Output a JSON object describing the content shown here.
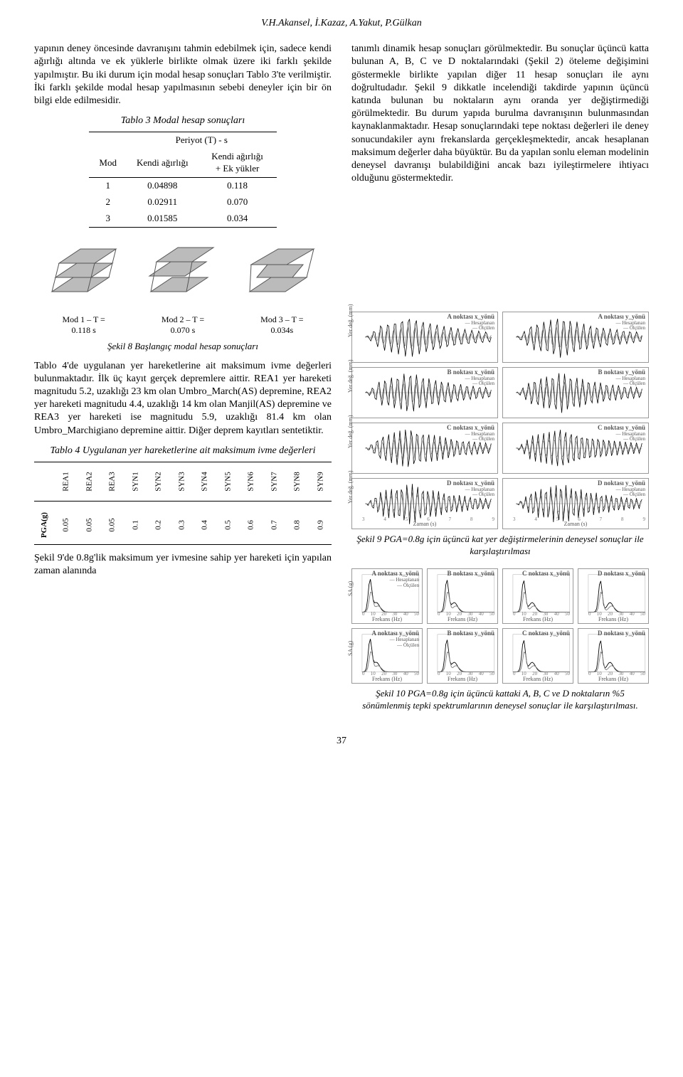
{
  "header": {
    "authors": "V.H.Akansel, İ.Kazaz, A.Yakut, P.Gülkan"
  },
  "left_para1": "yapının deney öncesinde davranışını tahmin edebilmek için, sadece kendi ağırlığı altında ve ek yüklerle birlikte olmak üzere iki farklı şekilde yapılmıştır. Bu iki durum için modal hesap sonuçları Tablo 3'te verilmiştir. İki farklı şekilde modal hesap yapılmasının sebebi deneyler için bir ön bilgi elde edilmesidir.",
  "tbl3": {
    "caption": "Tablo 3 Modal hesap sonuçları",
    "group_header": "Periyot (T) - s",
    "cols": [
      "Mod",
      "Kendi ağırlığı",
      "Kendi ağırlığı + Ek yükler"
    ],
    "rows": [
      [
        "1",
        "0.04898",
        "0.118"
      ],
      [
        "2",
        "0.02911",
        "0.070"
      ],
      [
        "3",
        "0.01585",
        "0.034"
      ]
    ]
  },
  "right_para": "tanımlı dinamik hesap sonuçları görülmektedir. Bu sonuçlar üçüncü katta bulunan A, B, C ve D noktalarındaki (Şekil 2) öteleme değişimini göstermekle birlikte yapılan diğer 11 hesap sonuçları ile aynı doğrultudadır. Şekil 9 dikkatle incelendiği takdirde yapının üçüncü katında bulunan bu noktaların aynı oranda yer değiştirmediği görülmektedir. Bu durum yapıda burulma davranışının bulunmasından kaynaklanmaktadır. Hesap sonuçlarındaki tepe noktası değerleri ile deney sonucundakiler aynı frekanslarda gerçekleşmektedir, ancak hesaplanan maksimum değerler daha büyüktür. Bu da yapılan sonlu eleman modelinin deneysel davranışı bulabildiğini ancak bazı iyileştirmelere ihtiyacı olduğunu göstermektedir.",
  "mode_labels": [
    {
      "top": "Mod 1 – T =",
      "bot": "0.118 s"
    },
    {
      "top": "Mod 2 – T =",
      "bot": "0.070 s"
    },
    {
      "top": "Mod 3 – T =",
      "bot": "0.034s"
    }
  ],
  "fig8_caption": "Şekil 8 Başlangıç modal hesap sonuçları",
  "left_para2": "Tablo 4'de uygulanan yer hareketlerine ait maksimum ivme değerleri bulunmaktadır. İlk üç kayıt gerçek depremlere aittir. REA1 yer hareketi magnitudu 5.2, uzaklığı 23 km olan Umbro_March(AS) depremine, REA2 yer hareketi magnitudu 4.4, uzaklığı 14 km olan Manjil(AS) depremine ve REA3 yer hareketi ise magnitudu 5.9, uzaklığı 81.4 km olan Umbro_Marchigiano depremine aittir. Diğer deprem kayıtları sentetiktir.",
  "tbl4": {
    "caption": "Tablo 4 Uygulanan yer hareketlerine ait maksimum ivme değerleri",
    "lead": "PGA(g)",
    "headers": [
      "REA1",
      "REA2",
      "REA3",
      "SYN1",
      "SYN2",
      "SYN3",
      "SYN4",
      "SYN5",
      "SYN6",
      "SYN7",
      "SYN8",
      "SYN9"
    ],
    "values": [
      "0.05",
      "0.05",
      "0.05",
      "0.1",
      "0.2",
      "0.3",
      "0.4",
      "0.5",
      "0.6",
      "0.7",
      "0.8",
      "0.9"
    ]
  },
  "left_para3": "Şekil 9'de 0.8g'lik maksimum yer ivmesine sahip yer hareketi için yapılan zaman alanında",
  "fig9": {
    "caption": "Şekil 9 PGA=0.8g için üçüncü kat yer değiştirmelerinin deneysel sonuçlar ile karşılaştırılması",
    "ylabel": "Yer değ. (mm)",
    "xlabel": "Zaman (s)",
    "xticks": [
      "3",
      "4",
      "5",
      "6",
      "7",
      "8",
      "9"
    ],
    "ylim": [
      -20,
      20
    ],
    "legend": [
      "Hesaplanan",
      "Ölçülen"
    ],
    "panels": [
      {
        "title": "A noktası x_yönü"
      },
      {
        "title": "A noktası y_yönü"
      },
      {
        "title": "B noktası x_yönü"
      },
      {
        "title": "B noktası y_yönü"
      },
      {
        "title": "C noktası x_yönü"
      },
      {
        "title": "C noktası y_yönü"
      },
      {
        "title": "D noktası x_yönü"
      },
      {
        "title": "D noktası y_yönü"
      }
    ],
    "colors": {
      "hesaplanan": "#000000",
      "olculen": "#7a7a7a"
    }
  },
  "fig10": {
    "caption": "Şekil 10 PGA=0.8g için üçüncü kattaki A, B, C ve D noktaların %5 sönümlenmiş tepki spektrumlarının deneysel sonuçlar ile karşılaştırılması.",
    "ylabel": "SA (g)",
    "xlabel": "Frekans (Hz)",
    "xticks": [
      "0",
      "10",
      "20",
      "30",
      "40",
      "50"
    ],
    "ylim_top": [
      0,
      10
    ],
    "ylim_bot": [
      0,
      10
    ],
    "legend": [
      "Hesaplanan",
      "Ölçülen"
    ],
    "row1": [
      {
        "title": "A noktası x_yönü"
      },
      {
        "title": "B noktası x_yönü"
      },
      {
        "title": "C noktası x_yönü"
      },
      {
        "title": "D noktası x_yönü"
      }
    ],
    "row2": [
      {
        "title": "A noktası y_yönü"
      },
      {
        "title": "B noktası y_yönü"
      },
      {
        "title": "C noktası y_yönü"
      },
      {
        "title": "D noktası y_yönü"
      }
    ],
    "colors": {
      "hesaplanan": "#000000",
      "olculen": "#7a7a7a"
    }
  },
  "page_number": "37"
}
